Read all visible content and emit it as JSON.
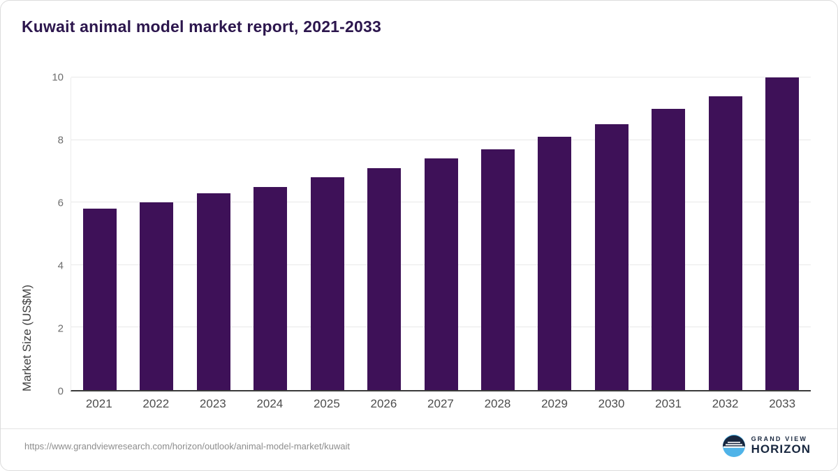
{
  "title": "Kuwait animal model market report, 2021-2033",
  "chart_data": {
    "type": "bar",
    "categories": [
      "2021",
      "2022",
      "2023",
      "2024",
      "2025",
      "2026",
      "2027",
      "2028",
      "2029",
      "2030",
      "2031",
      "2032",
      "2033"
    ],
    "values": [
      5.8,
      6.0,
      6.3,
      6.5,
      6.8,
      7.1,
      7.4,
      7.7,
      8.1,
      8.5,
      9.0,
      9.4,
      10.0
    ],
    "title": "Kuwait animal model market report, 2021-2033",
    "xlabel": "",
    "ylabel": "Market Size (US$M)",
    "ylim": [
      0,
      10
    ],
    "yticks": [
      0,
      2,
      4,
      6,
      8,
      10
    ],
    "bar_color": "#3e1158",
    "grid": true,
    "legend": false
  },
  "footer": {
    "source_url": "https://www.grandviewresearch.com/horizon/outlook/animal-model-market/kuwait",
    "logo": {
      "line1": "GRAND VIEW",
      "line2": "HORIZON"
    }
  },
  "colors": {
    "bar": "#3e1158",
    "title_text": "#2c164d",
    "axis_text": "#6e6e6e",
    "gridline": "#e9e9e9",
    "logo_navy": "#18273f",
    "logo_blue": "#4fb3e8"
  }
}
